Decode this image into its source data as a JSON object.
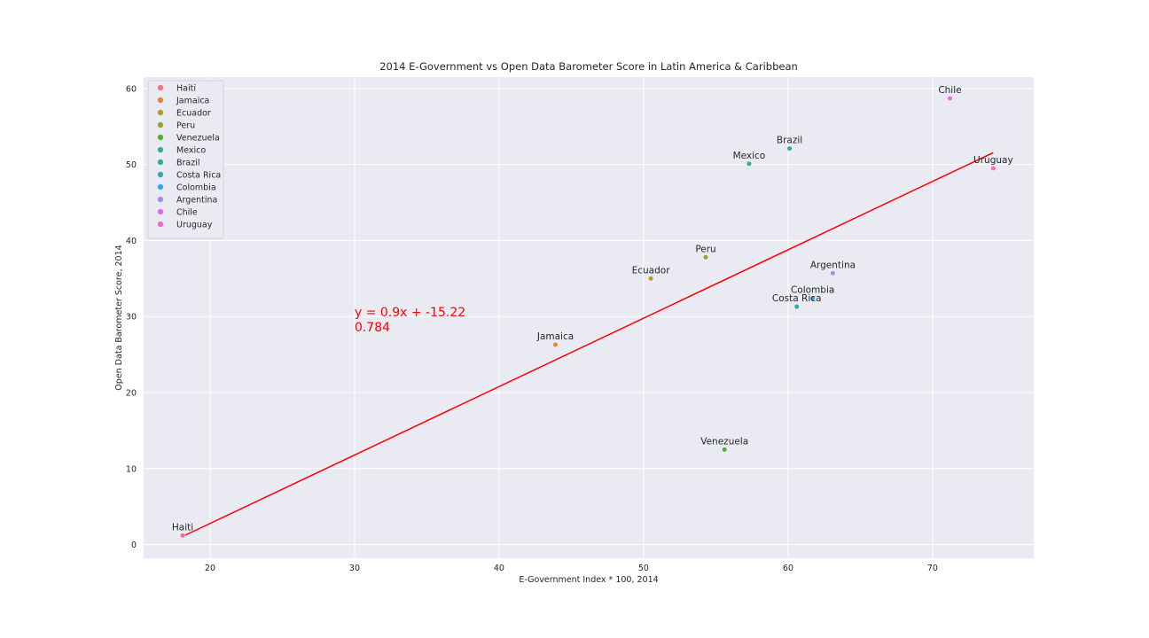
{
  "chart_data": {
    "type": "scatter",
    "title": "2014 E-Government vs Open Data Barometer Score in Latin America & Caribbean",
    "xlabel": "E-Government Index * 100, 2014",
    "ylabel": "Open Data Barometer Score, 2014",
    "xlim": [
      15.4,
      77.0
    ],
    "ylim": [
      -1.8,
      61.5
    ],
    "xticks": [
      20,
      30,
      40,
      50,
      60,
      70
    ],
    "yticks": [
      0,
      10,
      20,
      30,
      40,
      50,
      60
    ],
    "grid": true,
    "legend_position": "top-left",
    "series": [
      {
        "name": "Haiti",
        "x": 18.1,
        "y": 1.2,
        "color": "#f77189"
      },
      {
        "name": "Jamaica",
        "x": 43.9,
        "y": 26.3,
        "color": "#e2843a"
      },
      {
        "name": "Ecuador",
        "x": 50.5,
        "y": 35.0,
        "color": "#bb9832"
      },
      {
        "name": "Peru",
        "x": 54.3,
        "y": 37.8,
        "color": "#97a431"
      },
      {
        "name": "Venezuela",
        "x": 55.6,
        "y": 12.5,
        "color": "#50b131"
      },
      {
        "name": "Mexico",
        "x": 57.3,
        "y": 50.1,
        "color": "#34ae8d"
      },
      {
        "name": "Brazil",
        "x": 60.1,
        "y": 52.1,
        "color": "#36ab9e"
      },
      {
        "name": "Costa Rica",
        "x": 60.6,
        "y": 31.3,
        "color": "#38a7b2"
      },
      {
        "name": "Colombia",
        "x": 61.7,
        "y": 32.4,
        "color": "#3ba3ec"
      },
      {
        "name": "Argentina",
        "x": 63.1,
        "y": 35.7,
        "color": "#a48cf4"
      },
      {
        "name": "Chile",
        "x": 71.2,
        "y": 58.7,
        "color": "#e866f4"
      },
      {
        "name": "Uruguay",
        "x": 74.2,
        "y": 49.5,
        "color": "#f668c2"
      }
    ],
    "regression": {
      "slope": 0.9,
      "intercept": -15.22,
      "x_range": [
        18.1,
        74.2
      ],
      "color": "#ff0000"
    },
    "annotations": {
      "equation": "y = 0.9x + -15.22",
      "r_value": "0.784",
      "anchor_x": 30.0,
      "anchor_y": 30.0,
      "color": "#ff0000"
    }
  }
}
